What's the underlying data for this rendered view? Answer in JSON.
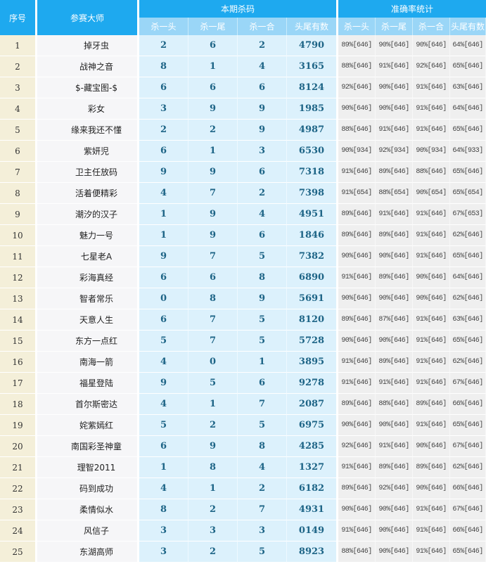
{
  "header": {
    "seq": "序号",
    "name": "参赛大师",
    "kill_group": "本期杀码",
    "stats_group": "准确率统计",
    "sub": [
      "杀一头",
      "杀一尾",
      "杀一合",
      "头尾有数"
    ],
    "stats_sub": [
      "杀一头",
      "杀一尾",
      "杀一合",
      "头尾有数"
    ]
  },
  "rows": [
    {
      "seq": "1",
      "name": "掉牙虫",
      "kill": [
        "2",
        "6",
        "2",
        "4790"
      ],
      "stats": [
        "89%[646]",
        "90%[646]",
        "90%[646]",
        "64%[646]"
      ]
    },
    {
      "seq": "2",
      "name": "战神之音",
      "kill": [
        "8",
        "1",
        "4",
        "3165"
      ],
      "stats": [
        "88%[646]",
        "91%[646]",
        "92%[646]",
        "65%[646]"
      ]
    },
    {
      "seq": "3",
      "name": "$-藏宝图-$",
      "kill": [
        "6",
        "6",
        "6",
        "8124"
      ],
      "stats": [
        "92%[646]",
        "90%[646]",
        "91%[646]",
        "63%[646]"
      ]
    },
    {
      "seq": "4",
      "name": "彩女",
      "kill": [
        "3",
        "9",
        "9",
        "1985"
      ],
      "stats": [
        "90%[646]",
        "90%[646]",
        "91%[646]",
        "64%[646]"
      ]
    },
    {
      "seq": "5",
      "name": "缘来我还不懂",
      "kill": [
        "2",
        "2",
        "9",
        "4987"
      ],
      "stats": [
        "88%[646]",
        "91%[646]",
        "91%[646]",
        "65%[646]"
      ]
    },
    {
      "seq": "6",
      "name": "紫妍児",
      "kill": [
        "6",
        "1",
        "3",
        "6530"
      ],
      "stats": [
        "90%[934]",
        "92%[934]",
        "90%[934]",
        "64%[933]"
      ]
    },
    {
      "seq": "7",
      "name": "卫主任放码",
      "kill": [
        "9",
        "9",
        "6",
        "7318"
      ],
      "stats": [
        "91%[646]",
        "89%[646]",
        "88%[646]",
        "65%[646]"
      ]
    },
    {
      "seq": "8",
      "name": "活着便精彩",
      "kill": [
        "4",
        "7",
        "2",
        "7398"
      ],
      "stats": [
        "91%[654]",
        "88%[654]",
        "90%[654]",
        "65%[654]"
      ]
    },
    {
      "seq": "9",
      "name": "潮汐的汉子",
      "kill": [
        "1",
        "9",
        "4",
        "4951"
      ],
      "stats": [
        "89%[646]",
        "91%[646]",
        "91%[646]",
        "67%[653]"
      ]
    },
    {
      "seq": "10",
      "name": "魅力一号",
      "kill": [
        "1",
        "9",
        "6",
        "1846"
      ],
      "stats": [
        "89%[646]",
        "89%[646]",
        "91%[646]",
        "62%[646]"
      ]
    },
    {
      "seq": "11",
      "name": "七星老A",
      "kill": [
        "9",
        "7",
        "5",
        "7382"
      ],
      "stats": [
        "90%[646]",
        "90%[646]",
        "91%[646]",
        "65%[646]"
      ]
    },
    {
      "seq": "12",
      "name": "彩海真经",
      "kill": [
        "6",
        "6",
        "8",
        "6890"
      ],
      "stats": [
        "91%[646]",
        "89%[646]",
        "90%[646]",
        "64%[646]"
      ]
    },
    {
      "seq": "13",
      "name": "智者常乐",
      "kill": [
        "0",
        "8",
        "9",
        "5691"
      ],
      "stats": [
        "90%[646]",
        "90%[646]",
        "90%[646]",
        "62%[646]"
      ]
    },
    {
      "seq": "14",
      "name": "天意人生",
      "kill": [
        "6",
        "7",
        "5",
        "8120"
      ],
      "stats": [
        "89%[646]",
        "87%[646]",
        "91%[646]",
        "63%[646]"
      ]
    },
    {
      "seq": "15",
      "name": "东方一点红",
      "kill": [
        "5",
        "7",
        "5",
        "5728"
      ],
      "stats": [
        "90%[646]",
        "90%[646]",
        "91%[646]",
        "65%[646]"
      ]
    },
    {
      "seq": "16",
      "name": "南海一箭",
      "kill": [
        "4",
        "0",
        "1",
        "3895"
      ],
      "stats": [
        "91%[646]",
        "89%[646]",
        "91%[646]",
        "62%[646]"
      ]
    },
    {
      "seq": "17",
      "name": "福星登陆",
      "kill": [
        "9",
        "5",
        "6",
        "9278"
      ],
      "stats": [
        "91%[646]",
        "91%[646]",
        "91%[646]",
        "67%[646]"
      ]
    },
    {
      "seq": "18",
      "name": "首尔斯密达",
      "kill": [
        "4",
        "1",
        "7",
        "2087"
      ],
      "stats": [
        "89%[646]",
        "88%[646]",
        "89%[646]",
        "66%[646]"
      ]
    },
    {
      "seq": "19",
      "name": "姹紫嫣红",
      "kill": [
        "5",
        "2",
        "5",
        "6975"
      ],
      "stats": [
        "90%[646]",
        "90%[646]",
        "91%[646]",
        "65%[646]"
      ]
    },
    {
      "seq": "20",
      "name": "南国彩圣神童",
      "kill": [
        "6",
        "9",
        "8",
        "4285"
      ],
      "stats": [
        "92%[646]",
        "91%[646]",
        "90%[646]",
        "67%[646]"
      ]
    },
    {
      "seq": "21",
      "name": "理智2011",
      "kill": [
        "1",
        "8",
        "4",
        "1327"
      ],
      "stats": [
        "91%[646]",
        "89%[646]",
        "89%[646]",
        "62%[646]"
      ]
    },
    {
      "seq": "22",
      "name": "码到成功",
      "kill": [
        "4",
        "1",
        "2",
        "6182"
      ],
      "stats": [
        "89%[646]",
        "92%[646]",
        "90%[646]",
        "66%[646]"
      ]
    },
    {
      "seq": "23",
      "name": "柔情似水",
      "kill": [
        "8",
        "2",
        "7",
        "4931"
      ],
      "stats": [
        "90%[646]",
        "90%[646]",
        "91%[646]",
        "67%[646]"
      ]
    },
    {
      "seq": "24",
      "name": "风信子",
      "kill": [
        "3",
        "3",
        "3",
        "0149"
      ],
      "stats": [
        "91%[646]",
        "90%[646]",
        "91%[646]",
        "66%[646]"
      ]
    },
    {
      "seq": "25",
      "name": "东湖高师",
      "kill": [
        "3",
        "2",
        "5",
        "8923"
      ],
      "stats": [
        "88%[646]",
        "90%[646]",
        "91%[646]",
        "65%[646]"
      ]
    }
  ]
}
